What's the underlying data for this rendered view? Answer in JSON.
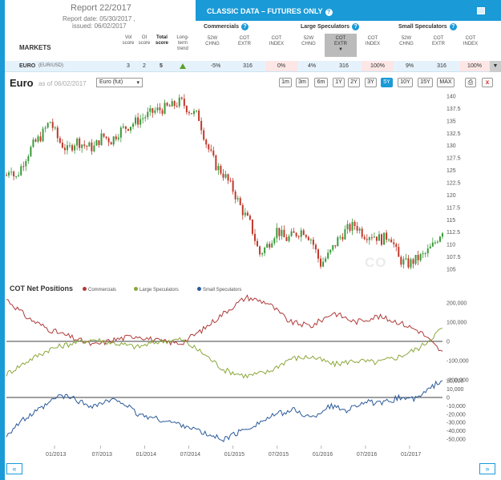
{
  "report": {
    "title": "Report 22/2017",
    "date": "Report date: 05/30/2017 ,",
    "issued": "issued: 06/02/2017",
    "markets_label": "MARKETS",
    "cols": [
      {
        "l1": "Vol",
        "l2": "score"
      },
      {
        "l1": "OI",
        "l2": "score"
      },
      {
        "l1": "Total",
        "l2": "score"
      },
      {
        "l1": "Long-term",
        "l2": "trend"
      }
    ]
  },
  "classic": {
    "title": "CLASSIC DATA – FUTURES ONLY",
    "help": "?",
    "groups": [
      {
        "name": "Commercials",
        "subs": [
          {
            "l1": "52W",
            "l2": "CHNG"
          },
          {
            "l1": "COT",
            "l2": "EXTR"
          },
          {
            "l1": "COT",
            "l2": "INDEX"
          }
        ]
      },
      {
        "name": "Large Speculators",
        "subs": [
          {
            "l1": "52W",
            "l2": "CHNG"
          },
          {
            "l1": "COT",
            "l2": "EXTR"
          },
          {
            "l1": "COT",
            "l2": "INDEX"
          }
        ]
      },
      {
        "name": "Small Speculators",
        "subs": [
          {
            "l1": "52W",
            "l2": "CHNG"
          },
          {
            "l1": "COT",
            "l2": "EXTR"
          },
          {
            "l1": "COT",
            "l2": "INDEX"
          }
        ]
      }
    ]
  },
  "row": {
    "market": "EURO",
    "pair": "(EUR/USD)",
    "vol": "3",
    "oi": "2",
    "total": "5",
    "trend": "up",
    "values": [
      "-5%",
      "316",
      "0%",
      "4%",
      "316",
      "100%",
      "9%",
      "316",
      "100%"
    ],
    "dropdown": "▼"
  },
  "chart": {
    "title": "Euro",
    "asof": "as of 06/02/2017",
    "select_value": "Euro (fut)",
    "ranges": [
      "1m",
      "3m",
      "6m",
      "1Y",
      "2Y",
      "3Y",
      "5Y",
      "10Y",
      "15Y",
      "MAX"
    ],
    "active_range": "5Y",
    "watermark": "CO",
    "prev": "«",
    "next": "»",
    "close": "x"
  },
  "cot": {
    "title": "COT Net Positions",
    "legend": [
      "Commercials",
      "Large Speculators",
      "Small Speculators"
    ]
  },
  "colors": {
    "accent": "#1a9ad7",
    "up_candle": "#3a9a3a",
    "down_candle": "#c0392b",
    "commercials": "#b03a3a",
    "large_specs": "#8aa83a",
    "small_specs": "#2a5a9a"
  },
  "chart_data": [
    {
      "type": "candlestick",
      "title": "Euro",
      "ylim": [
        105,
        140
      ],
      "yticks": [
        105,
        107.5,
        110,
        112.5,
        115,
        117.5,
        120,
        122.5,
        125,
        127.5,
        130,
        132.5,
        135,
        137.5,
        140
      ],
      "x_ticks": [
        "01/2013",
        "07/2013",
        "01/2014",
        "07/2014",
        "01/2015",
        "07/2015",
        "01/2016",
        "07/2016",
        "01/2017"
      ],
      "x_range": [
        "06/2012",
        "06/2017"
      ],
      "close_path": [
        [
          0,
          124
        ],
        [
          0.01,
          126
        ],
        [
          0.02,
          123
        ],
        [
          0.04,
          127
        ],
        [
          0.06,
          130
        ],
        [
          0.08,
          132
        ],
        [
          0.1,
          135
        ],
        [
          0.12,
          131
        ],
        [
          0.14,
          129
        ],
        [
          0.16,
          131
        ],
        [
          0.18,
          130
        ],
        [
          0.2,
          129.5
        ],
        [
          0.22,
          132
        ],
        [
          0.24,
          131
        ],
        [
          0.26,
          133
        ],
        [
          0.28,
          134
        ],
        [
          0.3,
          135
        ],
        [
          0.32,
          136
        ],
        [
          0.34,
          137
        ],
        [
          0.36,
          137.5
        ],
        [
          0.38,
          138
        ],
        [
          0.4,
          139
        ],
        [
          0.42,
          137
        ],
        [
          0.44,
          136
        ],
        [
          0.46,
          130
        ],
        [
          0.48,
          126
        ],
        [
          0.5,
          124
        ],
        [
          0.52,
          121
        ],
        [
          0.54,
          117
        ],
        [
          0.56,
          114
        ],
        [
          0.58,
          108
        ],
        [
          0.6,
          110
        ],
        [
          0.62,
          113
        ],
        [
          0.64,
          111
        ],
        [
          0.66,
          112
        ],
        [
          0.68,
          113
        ],
        [
          0.7,
          111
        ],
        [
          0.72,
          106
        ],
        [
          0.74,
          108
        ],
        [
          0.76,
          111
        ],
        [
          0.78,
          113
        ],
        [
          0.8,
          114
        ],
        [
          0.82,
          112
        ],
        [
          0.84,
          112
        ],
        [
          0.86,
          111
        ],
        [
          0.88,
          112
        ],
        [
          0.9,
          107
        ],
        [
          0.92,
          106
        ],
        [
          0.94,
          107
        ],
        [
          0.96,
          108
        ],
        [
          0.98,
          110
        ],
        [
          1.0,
          113
        ]
      ]
    },
    {
      "type": "line",
      "title": "COT Net Positions",
      "yticks": [
        200000,
        100000,
        0,
        -100000,
        -200000
      ],
      "series": [
        {
          "name": "Commercials",
          "points": [
            [
              0,
              220000
            ],
            [
              0.05,
              120000
            ],
            [
              0.1,
              60000
            ],
            [
              0.15,
              20000
            ],
            [
              0.2,
              -20000
            ],
            [
              0.25,
              10000
            ],
            [
              0.3,
              30000
            ],
            [
              0.35,
              0
            ],
            [
              0.4,
              -10000
            ],
            [
              0.45,
              60000
            ],
            [
              0.5,
              150000
            ],
            [
              0.55,
              230000
            ],
            [
              0.6,
              200000
            ],
            [
              0.65,
              100000
            ],
            [
              0.7,
              80000
            ],
            [
              0.75,
              150000
            ],
            [
              0.8,
              100000
            ],
            [
              0.85,
              130000
            ],
            [
              0.9,
              100000
            ],
            [
              0.95,
              50000
            ],
            [
              1.0,
              -60000
            ]
          ]
        },
        {
          "name": "Large Speculators",
          "points": [
            [
              0,
              -170000
            ],
            [
              0.05,
              -100000
            ],
            [
              0.1,
              -40000
            ],
            [
              0.15,
              -10000
            ],
            [
              0.2,
              10000
            ],
            [
              0.25,
              -10000
            ],
            [
              0.3,
              -30000
            ],
            [
              0.35,
              0
            ],
            [
              0.4,
              10000
            ],
            [
              0.45,
              -60000
            ],
            [
              0.5,
              -150000
            ],
            [
              0.55,
              -180000
            ],
            [
              0.6,
              -160000
            ],
            [
              0.65,
              -90000
            ],
            [
              0.7,
              -80000
            ],
            [
              0.75,
              -120000
            ],
            [
              0.8,
              -100000
            ],
            [
              0.85,
              -110000
            ],
            [
              0.9,
              -80000
            ],
            [
              0.95,
              -30000
            ],
            [
              1.0,
              70000
            ]
          ]
        }
      ]
    },
    {
      "type": "line",
      "title": "Small Speculators",
      "yticks": [
        20000,
        10000,
        0,
        -10000,
        -20000,
        -30000,
        -40000,
        -50000
      ],
      "series": [
        {
          "name": "Small Speculators",
          "points": [
            [
              0,
              -45000
            ],
            [
              0.03,
              -30000
            ],
            [
              0.06,
              -20000
            ],
            [
              0.09,
              -10000
            ],
            [
              0.12,
              2000
            ],
            [
              0.15,
              0
            ],
            [
              0.18,
              -8000
            ],
            [
              0.2,
              -10000
            ],
            [
              0.23,
              -5000
            ],
            [
              0.26,
              -3000
            ],
            [
              0.3,
              -20000
            ],
            [
              0.34,
              -25000
            ],
            [
              0.38,
              -30000
            ],
            [
              0.42,
              -35000
            ],
            [
              0.46,
              -45000
            ],
            [
              0.5,
              -50000
            ],
            [
              0.54,
              -40000
            ],
            [
              0.58,
              -30000
            ],
            [
              0.62,
              -20000
            ],
            [
              0.66,
              -15000
            ],
            [
              0.7,
              -25000
            ],
            [
              0.74,
              -10000
            ],
            [
              0.78,
              -15000
            ],
            [
              0.82,
              -5000
            ],
            [
              0.86,
              -8000
            ],
            [
              0.9,
              0
            ],
            [
              0.94,
              -2000
            ],
            [
              0.97,
              10000
            ],
            [
              1.0,
              22000
            ]
          ]
        }
      ]
    }
  ]
}
